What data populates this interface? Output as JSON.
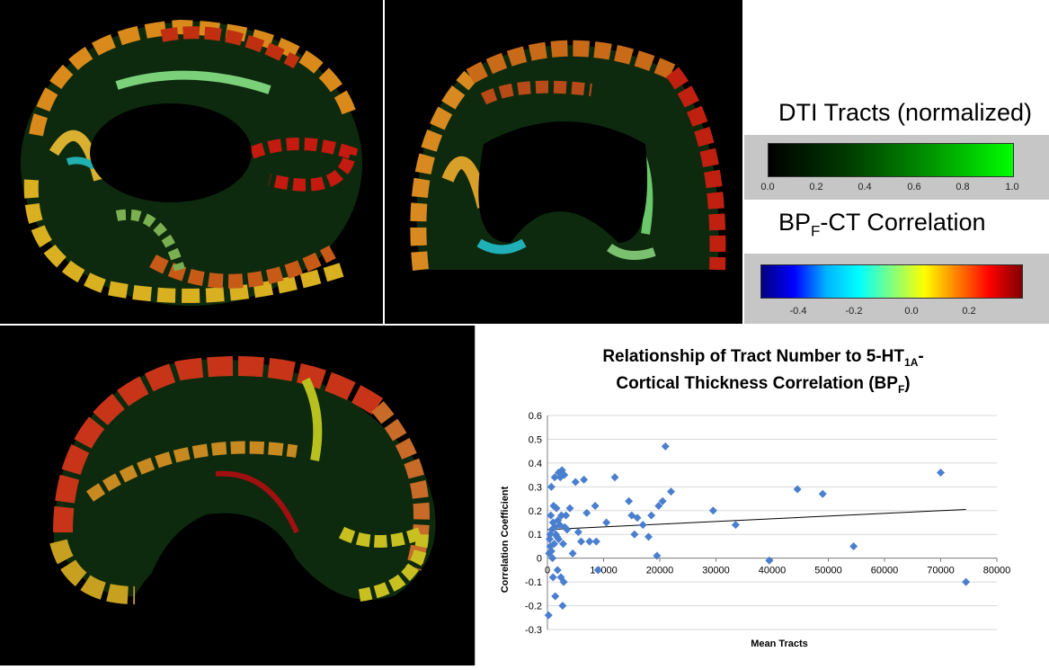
{
  "legend_dti": {
    "title": "DTI Tracts (normalized)",
    "ticks": [
      "0.0",
      "0.2",
      "0.4",
      "0.6",
      "0.8",
      "1.0"
    ]
  },
  "legend_bp": {
    "title_main": "BP",
    "title_sub": "F",
    "title_rest": "-CT Correlation",
    "ticks": [
      "-0.4",
      "-0.2",
      "0.0",
      "0.2"
    ]
  },
  "colors": {
    "marker": "#4a7fcf",
    "trendline": "#000000",
    "gridline": "#d9d9d9"
  },
  "chart_data": {
    "type": "scatter",
    "title_line1": "Relationship of Tract Number to 5-HT",
    "title_line1_sub": "1A",
    "title_line1_end": "-",
    "title_line2": "Cortical Thickness Correlation (BP",
    "title_line2_sub": "F",
    "title_line2_end": ")",
    "xlabel": "Mean Tracts",
    "ylabel": "Correlation Coefficient",
    "xlim": [
      0,
      80000
    ],
    "ylim": [
      -0.3,
      0.6
    ],
    "xticks": [
      0,
      10000,
      20000,
      30000,
      40000,
      50000,
      60000,
      70000,
      80000
    ],
    "yticks": [
      -0.3,
      -0.2,
      -0.1,
      0,
      0.1,
      0.2,
      0.3,
      0.4,
      0.5,
      0.6
    ],
    "x_grid": false,
    "y_grid": true,
    "marker": "diamond",
    "points": [
      [
        200,
        -0.24
      ],
      [
        300,
        0.02
      ],
      [
        400,
        0.08
      ],
      [
        500,
        0.1
      ],
      [
        500,
        0.05
      ],
      [
        600,
        0.18
      ],
      [
        700,
        0.3
      ],
      [
        700,
        0.03
      ],
      [
        800,
        0.12
      ],
      [
        900,
        0.0
      ],
      [
        1000,
        0.15
      ],
      [
        1000,
        -0.08
      ],
      [
        1100,
        0.22
      ],
      [
        1200,
        0.06
      ],
      [
        1300,
        0.34
      ],
      [
        1300,
        0.13
      ],
      [
        1400,
        -0.16
      ],
      [
        1500,
        0.1
      ],
      [
        1600,
        0.21
      ],
      [
        1700,
        0.09
      ],
      [
        1800,
        -0.05
      ],
      [
        1900,
        0.16
      ],
      [
        2000,
        0.36
      ],
      [
        2000,
        0.08
      ],
      [
        2200,
        0.14
      ],
      [
        2300,
        0.34
      ],
      [
        2400,
        -0.08
      ],
      [
        2500,
        0.18
      ],
      [
        2600,
        0.37
      ],
      [
        2700,
        -0.2
      ],
      [
        2800,
        0.06
      ],
      [
        2900,
        -0.1
      ],
      [
        3000,
        0.35
      ],
      [
        3100,
        0.13
      ],
      [
        3300,
        0.18
      ],
      [
        3500,
        0.12
      ],
      [
        4000,
        0.21
      ],
      [
        4500,
        0.02
      ],
      [
        5000,
        0.32
      ],
      [
        5500,
        0.11
      ],
      [
        6000,
        0.07
      ],
      [
        6500,
        0.33
      ],
      [
        7000,
        0.19
      ],
      [
        7500,
        0.07
      ],
      [
        8500,
        0.22
      ],
      [
        8700,
        0.07
      ],
      [
        9000,
        -0.05
      ],
      [
        10500,
        0.15
      ],
      [
        12000,
        0.34
      ],
      [
        14500,
        0.24
      ],
      [
        15000,
        0.18
      ],
      [
        15500,
        0.1
      ],
      [
        16000,
        0.17
      ],
      [
        17000,
        0.14
      ],
      [
        18000,
        0.09
      ],
      [
        18500,
        0.18
      ],
      [
        19500,
        0.01
      ],
      [
        19800,
        0.22
      ],
      [
        20500,
        0.24
      ],
      [
        21000,
        0.47
      ],
      [
        22000,
        0.28
      ],
      [
        29500,
        0.2
      ],
      [
        33500,
        0.14
      ],
      [
        39500,
        -0.01
      ],
      [
        44500,
        0.29
      ],
      [
        49000,
        0.27
      ],
      [
        54500,
        0.05
      ],
      [
        70000,
        0.36
      ],
      [
        74500,
        -0.1
      ]
    ],
    "trendline": [
      [
        0,
        0.12
      ],
      [
        74500,
        0.205
      ]
    ]
  }
}
